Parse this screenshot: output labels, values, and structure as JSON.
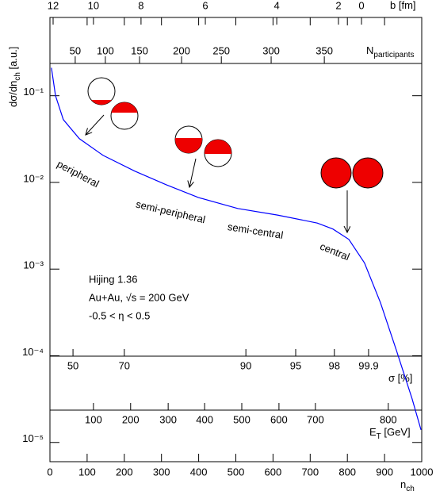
{
  "chart_data": {
    "type": "line",
    "xlabel": {
      "main": "n",
      "sub": "ch"
    },
    "ylabel": {
      "main": "dσ/dn",
      "sub": "ch",
      "after": " [a.u.]"
    },
    "x": [
      4,
      15,
      36,
      79,
      143,
      228,
      313,
      399,
      505,
      612,
      719,
      761,
      804,
      846,
      889,
      932,
      974,
      998
    ],
    "series": [
      {
        "color": "#0000ff",
        "values": [
          0.21,
          0.1,
          0.053,
          0.032,
          0.0205,
          0.0135,
          0.0094,
          0.0067,
          0.005,
          0.0042,
          0.0034,
          0.0029,
          0.0022,
          0.00118,
          0.00041,
          0.000115,
          3.2e-05,
          1.4e-05
        ]
      }
    ],
    "xlim": [
      0,
      1000
    ],
    "xticks": [
      0,
      100,
      200,
      300,
      400,
      500,
      600,
      700,
      800,
      900,
      1000
    ],
    "ylim": [
      6e-06,
      0.8
    ],
    "log_y": true,
    "yticks": [
      {
        "value": 0.1,
        "label": "10⁻¹"
      },
      {
        "value": 0.01,
        "label": "10⁻²"
      },
      {
        "value": 0.001,
        "label": "10⁻³"
      },
      {
        "value": 0.0001,
        "label": "10⁻⁴"
      },
      {
        "value": 1e-05,
        "label": "10⁻⁵"
      }
    ],
    "extra_axes": [
      {
        "title": {
          "main": "b [fm]"
        },
        "labels": [
          12,
          10,
          8,
          6,
          4,
          2,
          0
        ],
        "x": [
          8.5,
          117,
          245,
          418,
          610,
          776,
          838
        ]
      },
      {
        "title": {
          "main": "N",
          "sub": "participants"
        },
        "labels": [
          50,
          100,
          150,
          200,
          250,
          300,
          350
        ],
        "x": [
          68,
          149,
          241,
          354,
          461,
          595,
          738
        ]
      },
      {
        "title": {
          "main": "σ [%]"
        },
        "labels": [
          50,
          70,
          90,
          95,
          98,
          99.9
        ],
        "x": [
          62,
          200,
          527,
          661,
          765,
          857
        ]
      },
      {
        "title": {
          "main": "E",
          "sub": "T",
          "after": " [GeV]"
        },
        "labels": [
          100,
          200,
          300,
          400,
          500,
          600,
          700,
          800
        ],
        "x": [
          117,
          217,
          318,
          416,
          516,
          616,
          714,
          910
        ]
      }
    ],
    "annotations": [
      "peripheral",
      "semi-peripheral",
      "semi-central",
      "central"
    ],
    "info": [
      "Hijing 1.36",
      "Au+Au, √s = 200 GeV",
      "-0.5 < η < 0.5"
    ]
  }
}
